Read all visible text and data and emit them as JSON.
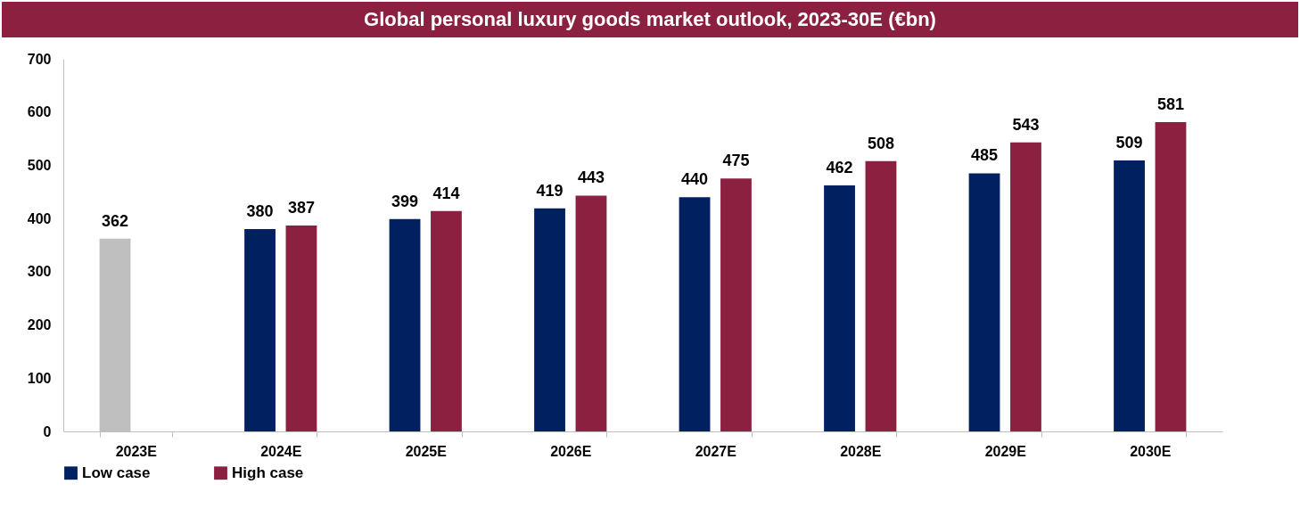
{
  "chart_data": {
    "type": "bar",
    "title": "Global personal luxury goods market outlook, 2023-30E (€bn)",
    "categories": [
      "2023E",
      "2024E",
      "2025E",
      "2026E",
      "2027E",
      "2028E",
      "2029E",
      "2030E"
    ],
    "series": [
      {
        "name": "Low case",
        "color": "#002060",
        "colors": [
          "#bfbfbf",
          "#002060",
          "#002060",
          "#002060",
          "#002060",
          "#002060",
          "#002060",
          "#002060"
        ],
        "values": [
          362,
          380,
          399,
          419,
          440,
          462,
          485,
          509
        ]
      },
      {
        "name": "High case",
        "color": "#8b2040",
        "values": [
          null,
          387,
          414,
          443,
          475,
          508,
          543,
          581
        ]
      }
    ],
    "ylim": [
      0,
      700
    ],
    "yticks": [
      0,
      100,
      200,
      300,
      400,
      500,
      600,
      700
    ],
    "grid": false,
    "legend": "bottom",
    "data_labels": true
  }
}
